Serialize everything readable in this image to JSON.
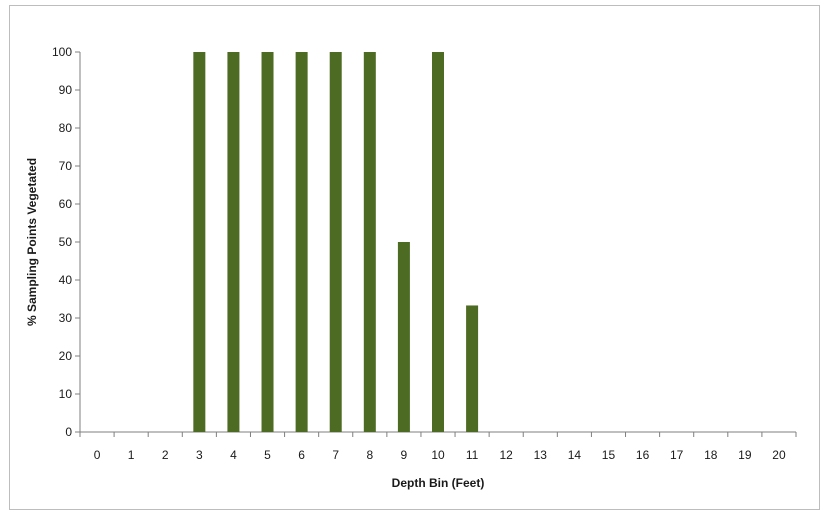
{
  "chart_data": {
    "type": "bar",
    "title": "",
    "xlabel": "Depth Bin (Feet)",
    "ylabel": "% Sampling Points Vegetated",
    "categories": [
      "0",
      "1",
      "2",
      "3",
      "4",
      "5",
      "6",
      "7",
      "8",
      "9",
      "10",
      "11",
      "12",
      "13",
      "14",
      "15",
      "16",
      "17",
      "18",
      "19",
      "20"
    ],
    "values": [
      0,
      0,
      0,
      100,
      100,
      100,
      100,
      100,
      100,
      50,
      100,
      33.3,
      0,
      0,
      0,
      0,
      0,
      0,
      0,
      0,
      0
    ],
    "ylim": [
      0,
      100
    ],
    "yticks": [
      0,
      10,
      20,
      30,
      40,
      50,
      60,
      70,
      80,
      90,
      100
    ],
    "grid": false,
    "legend": "none",
    "bar_color": "#4d6b22"
  }
}
